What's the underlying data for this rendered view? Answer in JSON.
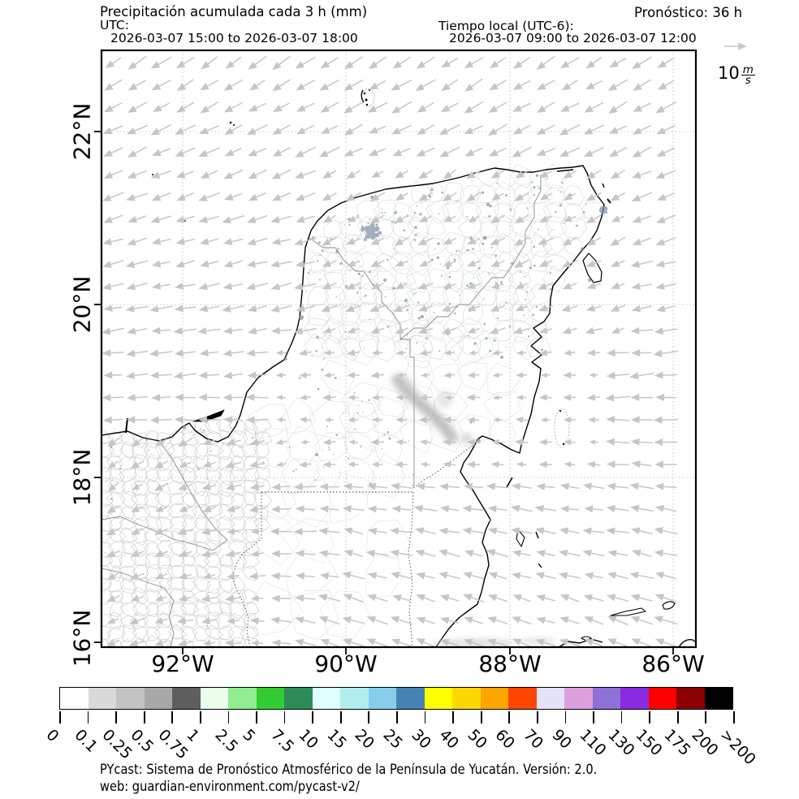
{
  "header": {
    "title": "Precipitación acumulada cada 3 h (mm)",
    "utc_label": "UTC:",
    "utc_range": "2026-03-07 15:00 to 2026-03-07 18:00",
    "local_label": "Tiempo local (UTC-6):",
    "local_range": "2026-03-07 09:00 to 2026-03-07 12:00",
    "forecast": "Pronóstico: 36 h"
  },
  "wind_key": {
    "value": "10",
    "unit_num": "m",
    "unit_den": "s"
  },
  "map": {
    "x_ticks": [
      "92°W",
      "90°W",
      "88°W",
      "86°W"
    ],
    "y_ticks": [
      "22°N",
      "20°N",
      "18°N",
      "16°N"
    ]
  },
  "colorbar": {
    "tick_labels": [
      "0",
      "0.1",
      "0.25",
      "0.5",
      "0.75",
      "1",
      "2.5",
      "5",
      "7.5",
      "10",
      "15",
      "20",
      "25",
      "30",
      "40",
      "50",
      "60",
      "70",
      "90",
      "110",
      "130",
      "150",
      "175",
      "200",
      ">200"
    ],
    "colors": [
      "#ffffff",
      "#d9d9d9",
      "#c3c3c3",
      "#a8a8a8",
      "#5e5e5e",
      "#e9ffe9",
      "#90ee90",
      "#32cd32",
      "#2e8b57",
      "#e0ffff",
      "#b0eeee",
      "#87ceeb",
      "#4682b4",
      "#ffff00",
      "#ffd700",
      "#ffa500",
      "#ff4500",
      "#e4e4f8",
      "#dda0dd",
      "#8d70d8",
      "#8a2be2",
      "#ff0000",
      "#8b0000",
      "#000000"
    ]
  },
  "footer": {
    "line1": "PYcast: Sistema de Pronóstico Atmosférico de la Península de Yucatán. Versión: 2.0.",
    "line2": "web: guardian-environment.com/pycast-v2/"
  }
}
